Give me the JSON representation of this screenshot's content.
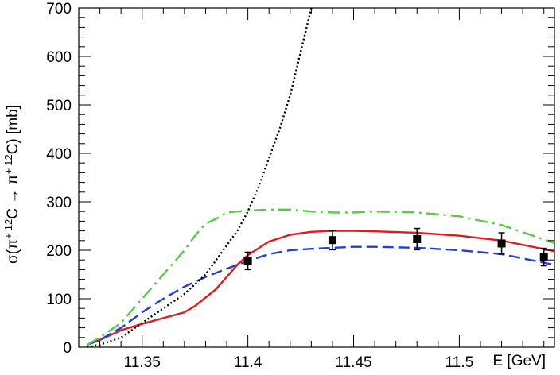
{
  "chart_data": {
    "type": "line",
    "title": "",
    "xlabel": "E [GeV]",
    "ylabel_parts": {
      "sigma": "σ(π",
      "sup1": "+",
      "sup2": "12",
      "mid": "C → π",
      "sup3": "+",
      "sup4": "12",
      "end": "C) [mb]"
    },
    "xlim": [
      11.32,
      11.545
    ],
    "ylim": [
      0,
      700
    ],
    "x_ticks": [
      11.35,
      11.4,
      11.45,
      11.5
    ],
    "x_tick_labels": [
      "11.35",
      "11.4",
      "11.45",
      "11.5"
    ],
    "y_ticks": [
      0,
      100,
      200,
      300,
      400,
      500,
      600,
      700
    ],
    "y_tick_labels": [
      "0",
      "100",
      "200",
      "300",
      "400",
      "500",
      "600",
      "700"
    ],
    "grid": false,
    "series": [
      {
        "style": "solid",
        "color": "#e31a1c",
        "x": [
          11.324,
          11.33,
          11.335,
          11.34,
          11.35,
          11.36,
          11.37,
          11.375,
          11.385,
          11.39,
          11.395,
          11.4,
          11.41,
          11.42,
          11.43,
          11.44,
          11.45,
          11.46,
          11.48,
          11.5,
          11.52,
          11.545
        ],
        "y": [
          5,
          15,
          25,
          35,
          48,
          60,
          72,
          85,
          120,
          145,
          170,
          190,
          218,
          232,
          238,
          240,
          240,
          239,
          236,
          230,
          220,
          198
        ]
      },
      {
        "style": "dashed",
        "color": "#1f3fd6",
        "x": [
          11.324,
          11.33,
          11.34,
          11.35,
          11.36,
          11.37,
          11.38,
          11.39,
          11.4,
          11.41,
          11.42,
          11.43,
          11.44,
          11.45,
          11.46,
          11.48,
          11.5,
          11.52,
          11.545
        ],
        "y": [
          5,
          15,
          40,
          72,
          100,
          125,
          145,
          162,
          178,
          192,
          200,
          203,
          205,
          207,
          207,
          205,
          200,
          192,
          170
        ]
      },
      {
        "style": "dashdot",
        "color": "#55cc44",
        "x": [
          11.324,
          11.33,
          11.34,
          11.35,
          11.36,
          11.37,
          11.375,
          11.38,
          11.385,
          11.39,
          11.395,
          11.4,
          11.41,
          11.42,
          11.43,
          11.44,
          11.45,
          11.46,
          11.48,
          11.5,
          11.52,
          11.545
        ],
        "y": [
          5,
          20,
          50,
          100,
          150,
          200,
          230,
          255,
          265,
          278,
          280,
          282,
          284,
          284,
          280,
          278,
          278,
          280,
          278,
          270,
          252,
          215
        ]
      },
      {
        "style": "dotted",
        "color": "#000000",
        "x": [
          11.324,
          11.33,
          11.34,
          11.35,
          11.36,
          11.37,
          11.38,
          11.385,
          11.39,
          11.395,
          11.4,
          11.405,
          11.41,
          11.415,
          11.42,
          11.425,
          11.43
        ],
        "y": [
          0,
          5,
          20,
          50,
          80,
          110,
          150,
          180,
          210,
          240,
          280,
          330,
          390,
          450,
          520,
          610,
          700
        ]
      }
    ],
    "points": {
      "x": [
        11.4,
        11.44,
        11.48,
        11.52,
        11.54
      ],
      "y": [
        178,
        221,
        223,
        214,
        186
      ],
      "err": [
        18,
        20,
        22,
        22,
        18
      ]
    }
  }
}
